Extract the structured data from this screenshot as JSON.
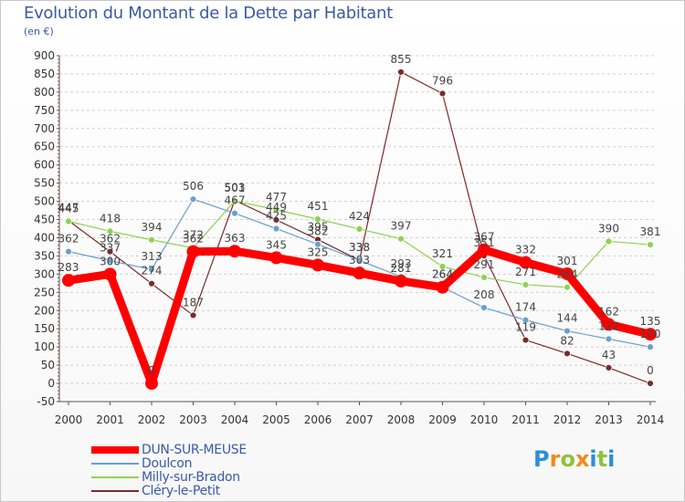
{
  "chart_data": {
    "type": "line",
    "title": "Evolution du Montant de la Dette par Habitant",
    "subtitle": "(en €)",
    "x": [
      "2000",
      "2001",
      "2002",
      "2003",
      "2004",
      "2005",
      "2006",
      "2007",
      "2008",
      "2009",
      "2010",
      "2011",
      "2012",
      "2013",
      "2014"
    ],
    "ylim": [
      -50,
      900
    ],
    "yticks": [
      -50,
      0,
      50,
      100,
      150,
      200,
      250,
      300,
      350,
      400,
      450,
      500,
      550,
      600,
      650,
      700,
      750,
      800,
      850,
      900
    ],
    "grid": "horizontal dashed",
    "legend_position": "bottom-left",
    "series": [
      {
        "name": "DUN-SUR-MEUSE",
        "color": "#ff0000",
        "emphasis": true,
        "values": [
          283,
          300,
          0,
          362,
          363,
          345,
          325,
          303,
          281,
          264,
          367,
          332,
          301,
          162,
          135
        ]
      },
      {
        "name": "Doulcon",
        "color": "#6b9fcf",
        "emphasis": false,
        "values": [
          362,
          337,
          313,
          506,
          467,
          425,
          382,
          338,
          293,
          264,
          208,
          174,
          144,
          122,
          100
        ]
      },
      {
        "name": "Milly-sur-Bradon",
        "color": "#8fd14f",
        "emphasis": false,
        "values": [
          445,
          418,
          394,
          372,
          501,
          477,
          451,
          424,
          397,
          321,
          291,
          271,
          264,
          390,
          381
        ]
      },
      {
        "name": "Cléry-le-Petit",
        "color": "#7a2a2a",
        "emphasis": false,
        "values": [
          447,
          362,
          274,
          187,
          503,
          449,
          395,
          338,
          855,
          796,
          351,
          119,
          82,
          43,
          0
        ]
      }
    ],
    "value_labels": [
      [
        283,
        300,
        0,
        362,
        363,
        345,
        325,
        303,
        281,
        264,
        367,
        332,
        301,
        162,
        135
      ],
      [
        362,
        337,
        313,
        506,
        467,
        425,
        382,
        338,
        293,
        264,
        208,
        174,
        144,
        122,
        100
      ],
      [
        445,
        418,
        394,
        372,
        501,
        477,
        451,
        424,
        397,
        321,
        291,
        271,
        264,
        390,
        381
      ],
      [
        447,
        362,
        274,
        187,
        503,
        449,
        395,
        338,
        855,
        796,
        351,
        119,
        82,
        43,
        0
      ]
    ]
  },
  "legend": {
    "items": [
      {
        "label": "DUN-SUR-MEUSE",
        "color": "#ff0000"
      },
      {
        "label": "Doulcon",
        "color": "#6b9fcf"
      },
      {
        "label": "Milly-sur-Bradon",
        "color": "#8fd14f"
      },
      {
        "label": "Cléry-le-Petit",
        "color": "#7a2a2a"
      }
    ]
  },
  "logo": {
    "text": "Proxiti",
    "letters": [
      {
        "ch": "P",
        "color": "#2b8fd6"
      },
      {
        "ch": "r",
        "color": "#f08a1c"
      },
      {
        "ch": "o",
        "color": "#8cc43c"
      },
      {
        "ch": "x",
        "color": "#f08a1c"
      },
      {
        "ch": "i",
        "color": "#2b8fd6"
      },
      {
        "ch": "t",
        "color": "#8cc43c"
      },
      {
        "ch": "i",
        "color": "#2b8fd6"
      }
    ]
  }
}
